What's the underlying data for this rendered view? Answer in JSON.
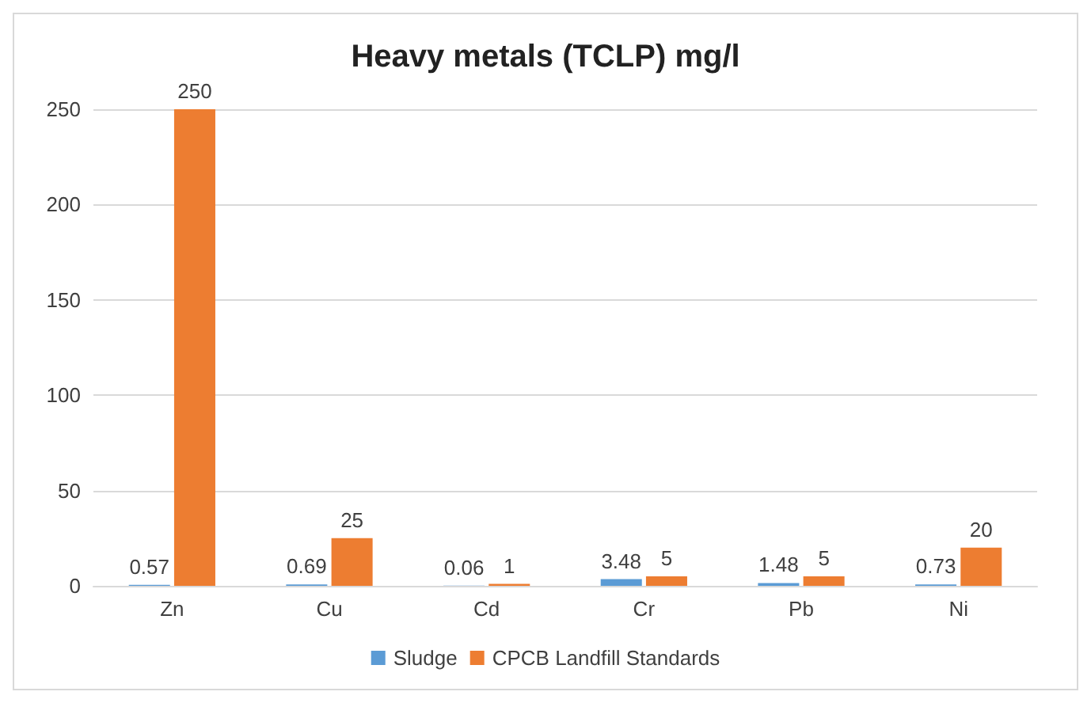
{
  "chart_data": {
    "type": "bar",
    "title": "Heavy metals (TCLP) mg/l",
    "categories": [
      "Zn",
      "Cu",
      "Cd",
      "Cr",
      "Pb",
      "Ni"
    ],
    "series": [
      {
        "name": "Sludge",
        "color": "#5b9bd5",
        "values": [
          0.57,
          0.69,
          0.06,
          3.48,
          1.48,
          0.73
        ]
      },
      {
        "name": "CPCB Landfill Standards",
        "color": "#ed7d31",
        "values": [
          250,
          25,
          1,
          5,
          5,
          20
        ]
      }
    ],
    "ylim": [
      0,
      250
    ],
    "yticks": [
      0,
      50,
      100,
      150,
      200,
      250
    ],
    "grid": "y",
    "legend": "bottom",
    "data_labels": true
  }
}
